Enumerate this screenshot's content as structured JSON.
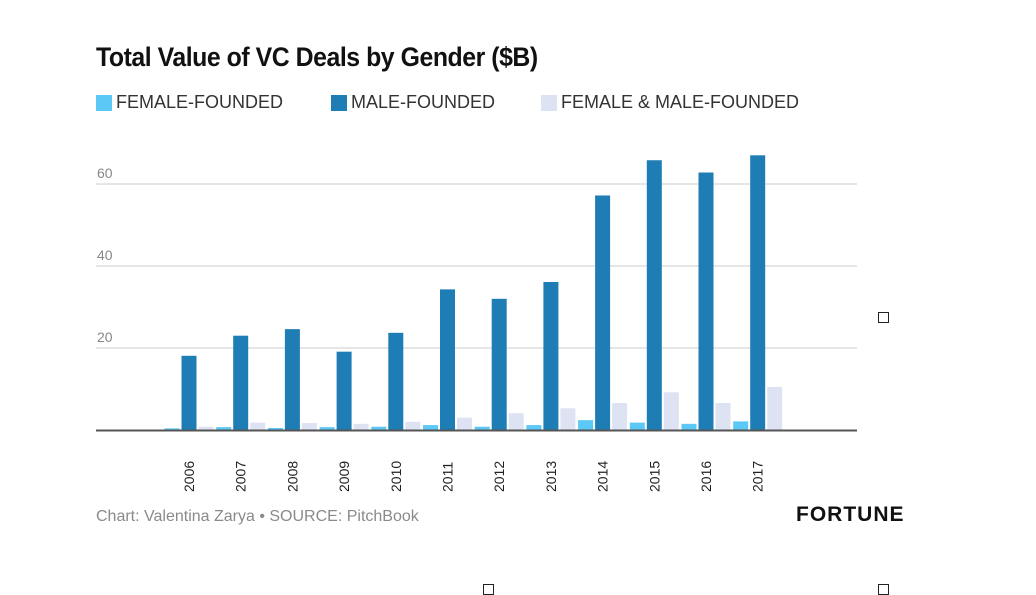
{
  "title": "Total Value of VC Deals by Gender ($B)",
  "footer": {
    "credit": "Chart: Valentina Zarya • SOURCE: PitchBook",
    "brand": "FORTUNE"
  },
  "colors": {
    "female": "#5bc8f5",
    "male": "#1f7db5",
    "both": "#dde3f2",
    "grid": "#cccccc",
    "axis": "#555555",
    "tick_text": "#888888"
  },
  "chart_data": {
    "type": "bar",
    "title": "Total Value of VC Deals by Gender ($B)",
    "xlabel": "",
    "ylabel": "",
    "ylim": [
      0,
      70
    ],
    "yticks": [
      20,
      40,
      60
    ],
    "grid": true,
    "legend_position": "top",
    "categories": [
      "2006",
      "2007",
      "2008",
      "2009",
      "2010",
      "2011",
      "2012",
      "2013",
      "2014",
      "2015",
      "2016",
      "2017"
    ],
    "series": [
      {
        "name": "FEMALE-FOUNDED",
        "color": "#5bc8f5",
        "values": [
          0.4,
          0.7,
          0.5,
          0.7,
          0.8,
          1.2,
          0.8,
          1.2,
          2.4,
          1.8,
          1.5,
          2.1
        ]
      },
      {
        "name": "MALE-FOUNDED",
        "color": "#1f7db5",
        "values": [
          18.1,
          23.0,
          24.6,
          19.1,
          23.7,
          34.3,
          32.0,
          36.1,
          57.2,
          65.8,
          62.8,
          67.0
        ]
      },
      {
        "name": "FEMALE & MALE-FOUNDED",
        "color": "#dde3f2",
        "values": [
          0.8,
          1.8,
          1.7,
          1.5,
          2.0,
          3.0,
          4.1,
          5.3,
          6.6,
          9.2,
          6.6,
          10.5
        ]
      }
    ]
  }
}
